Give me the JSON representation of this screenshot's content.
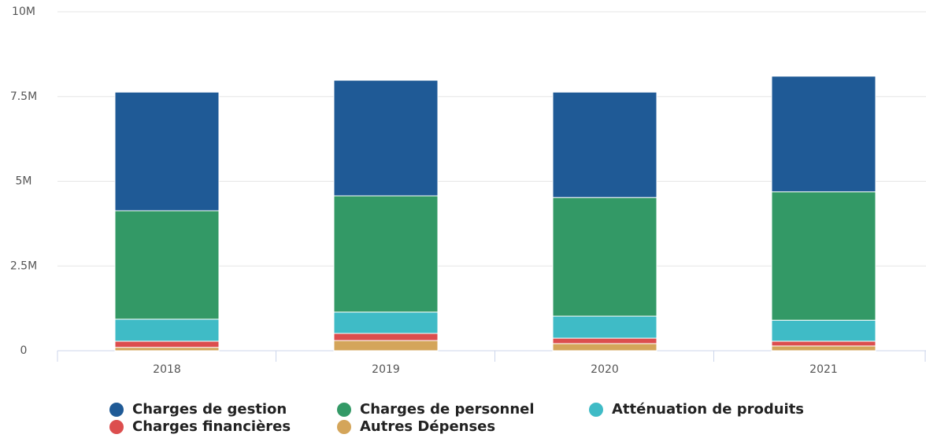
{
  "chart_data": {
    "type": "bar",
    "stacked": true,
    "categories": [
      "2018",
      "2019",
      "2020",
      "2021"
    ],
    "series": [
      {
        "name": "Autres Dépenses",
        "color": "#d4a55a",
        "values": [
          100000,
          300000,
          210000,
          140000
        ]
      },
      {
        "name": "Charges financières",
        "color": "#dc4e4e",
        "values": [
          180000,
          210000,
          160000,
          140000
        ]
      },
      {
        "name": "Atténuation de produits",
        "color": "#3fbbc6",
        "values": [
          650000,
          630000,
          650000,
          620000
        ]
      },
      {
        "name": "Charges de personnel",
        "color": "#339966",
        "values": [
          3200000,
          3430000,
          3500000,
          3790000
        ]
      },
      {
        "name": "Charges de gestion",
        "color": "#1f5a96",
        "values": [
          3500000,
          3410000,
          3110000,
          3410000
        ]
      }
    ],
    "ylim": [
      0,
      10000000
    ],
    "yticks": [
      0,
      {
        "value": 2500000,
        "label": "2.5M"
      },
      {
        "value": 5000000,
        "label": "5M"
      },
      {
        "value": 7500000,
        "label": "7.5M"
      },
      {
        "value": 10000000,
        "label": "10M"
      }
    ],
    "grid": true
  }
}
